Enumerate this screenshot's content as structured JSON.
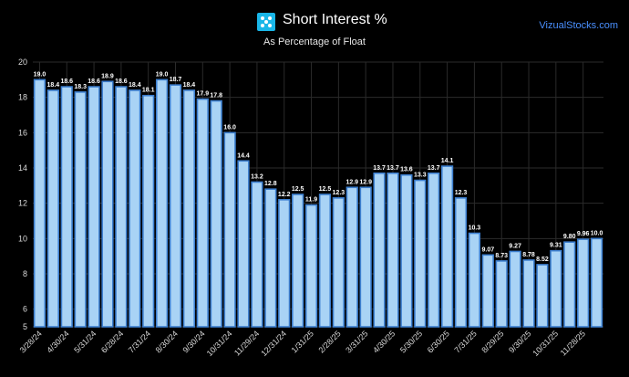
{
  "header": {
    "title": "Short Interest %",
    "subtitle": "As Percentage of Float",
    "brand": "VizualStocks.com",
    "logo_icon": "stock-logo-icon"
  },
  "colors": {
    "background": "#000000",
    "bar_fill": "#a9d3f5",
    "bar_stroke": "#3c7fd0",
    "grid": "#2b2b2b",
    "brand": "#4a90ff",
    "logo": "#19b6e8"
  },
  "chart_data": {
    "type": "bar",
    "title": "Short Interest %",
    "subtitle": "As Percentage of Float",
    "xlabel": "",
    "ylabel": "",
    "ylim": [
      5,
      20
    ],
    "yticks": [
      5,
      6,
      8,
      10,
      12,
      14,
      16,
      18,
      20
    ],
    "grid": true,
    "values": [
      19.0,
      18.4,
      18.6,
      18.3,
      18.6,
      18.9,
      18.6,
      18.4,
      18.1,
      19.0,
      18.7,
      18.4,
      17.9,
      17.8,
      16.0,
      14.4,
      13.2,
      12.8,
      12.2,
      12.5,
      11.9,
      12.5,
      12.3,
      12.9,
      12.9,
      13.7,
      13.7,
      13.6,
      13.3,
      13.7,
      14.1,
      12.3,
      10.3,
      9.07,
      8.73,
      9.27,
      8.78,
      8.52,
      9.31,
      9.8,
      9.96,
      10.0
    ],
    "labels": [
      "19.0",
      "18.4",
      "18.6",
      "18.3",
      "18.6",
      "18.9",
      "18.6",
      "18.4",
      "18.1",
      "19.0",
      "18.7",
      "18.4",
      "17.9",
      "17.8",
      "16.0",
      "14.4",
      "13.2",
      "12.8",
      "12.2",
      "12.5",
      "11.9",
      "12.5",
      "12.3",
      "12.9",
      "12.9",
      "13.7",
      "13.7",
      "13.6",
      "13.3",
      "13.7",
      "14.1",
      "12.3",
      "10.3",
      "9.07",
      "8.73",
      "9.27",
      "8.78",
      "8.52",
      "9.31",
      "9.80",
      "9.96",
      "10.0"
    ],
    "x_ticks": [
      {
        "index": 0,
        "label": "3/28/24"
      },
      {
        "index": 2,
        "label": "4/30/24"
      },
      {
        "index": 4,
        "label": "5/31/24"
      },
      {
        "index": 6,
        "label": "6/28/24"
      },
      {
        "index": 8,
        "label": "7/31/24"
      },
      {
        "index": 10,
        "label": "8/30/24"
      },
      {
        "index": 12,
        "label": "9/30/24"
      },
      {
        "index": 14,
        "label": "10/31/24"
      },
      {
        "index": 16,
        "label": "11/29/24"
      },
      {
        "index": 18,
        "label": "12/31/24"
      },
      {
        "index": 20,
        "label": "1/31/25"
      },
      {
        "index": 22,
        "label": "2/28/25"
      },
      {
        "index": 24,
        "label": "3/31/25"
      },
      {
        "index": 26,
        "label": "4/30/25"
      },
      {
        "index": 28,
        "label": "5/30/25"
      },
      {
        "index": 30,
        "label": "6/30/25"
      },
      {
        "index": 32,
        "label": "7/31/25"
      },
      {
        "index": 34,
        "label": "8/29/25"
      },
      {
        "index": 36,
        "label": "9/30/25"
      },
      {
        "index": 38,
        "label": "10/31/25"
      },
      {
        "index": 40,
        "label": "11/28/25"
      }
    ]
  }
}
